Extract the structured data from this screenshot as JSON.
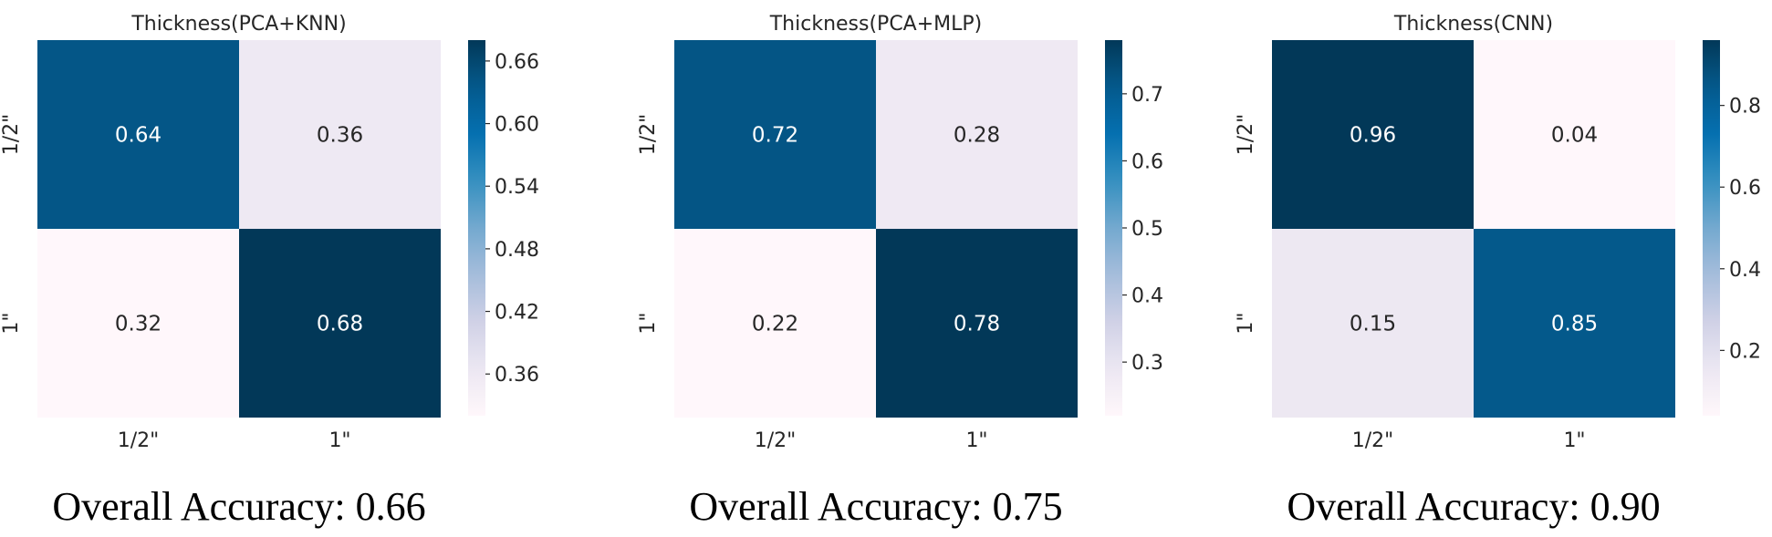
{
  "chart_data": [
    {
      "type": "heatmap",
      "title": "Thickness(PCA+KNN)",
      "rows": [
        "1/2\"",
        "1\""
      ],
      "cols": [
        "1/2\"",
        "1\""
      ],
      "values": [
        [
          0.64,
          0.36
        ],
        [
          0.32,
          0.68
        ]
      ],
      "colorbar": {
        "vmin": 0.32,
        "vmax": 0.68,
        "ticks": [
          0.36,
          0.42,
          0.48,
          0.54,
          0.6,
          0.66
        ],
        "tick_labels": [
          "0.36",
          "0.42",
          "0.48",
          "0.54",
          "0.60",
          "0.66"
        ]
      },
      "caption": "Overall Accuracy: 0.66"
    },
    {
      "type": "heatmap",
      "title": "Thickness(PCA+MLP)",
      "rows": [
        "1/2\"",
        "1\""
      ],
      "cols": [
        "1/2\"",
        "1\""
      ],
      "values": [
        [
          0.72,
          0.28
        ],
        [
          0.22,
          0.78
        ]
      ],
      "colorbar": {
        "vmin": 0.22,
        "vmax": 0.78,
        "ticks": [
          0.3,
          0.4,
          0.5,
          0.6,
          0.7
        ],
        "tick_labels": [
          "0.3",
          "0.4",
          "0.5",
          "0.6",
          "0.7"
        ]
      },
      "caption": "Overall Accuracy: 0.75"
    },
    {
      "type": "heatmap",
      "title": "Thickness(CNN)",
      "rows": [
        "1/2\"",
        "1\""
      ],
      "cols": [
        "1/2\"",
        "1\""
      ],
      "values": [
        [
          0.96,
          0.04
        ],
        [
          0.15,
          0.85
        ]
      ],
      "colorbar": {
        "vmin": 0.04,
        "vmax": 0.96,
        "ticks": [
          0.2,
          0.4,
          0.6,
          0.8
        ],
        "tick_labels": [
          "0.2",
          "0.4",
          "0.6",
          "0.8"
        ]
      },
      "caption": "Overall Accuracy: 0.90"
    }
  ],
  "colormap": "PuBu",
  "colors": [
    "#fff7fb",
    "#ece7f2",
    "#d0d1e6",
    "#a6bddb",
    "#74a9cf",
    "#3690c0",
    "#0570b0",
    "#045a8d",
    "#023858"
  ]
}
